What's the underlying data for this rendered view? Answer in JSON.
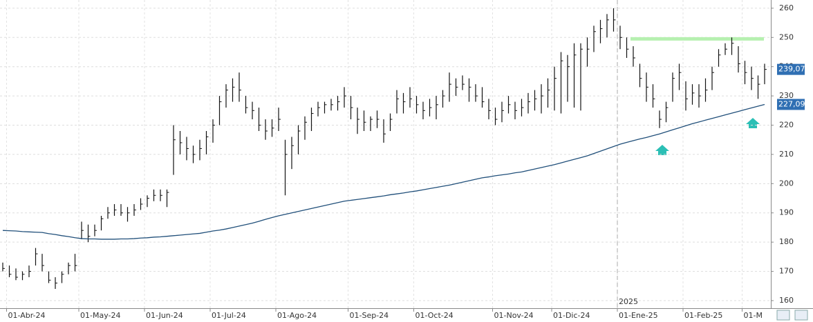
{
  "chart_data": {
    "type": "ohlc",
    "categories": [
      null,
      "01-Abr-24",
      null,
      null,
      null,
      null,
      null,
      null,
      null,
      null,
      null,
      null,
      "01-May-24",
      null,
      null,
      null,
      null,
      null,
      null,
      null,
      null,
      null,
      "01-Jun-24",
      null,
      null,
      null,
      null,
      null,
      null,
      null,
      null,
      null,
      "01-Jul-24",
      null,
      null,
      null,
      null,
      null,
      null,
      null,
      null,
      null,
      "01-Ago-24",
      null,
      null,
      null,
      null,
      null,
      null,
      null,
      null,
      null,
      null,
      "01-Sep-24",
      null,
      null,
      null,
      null,
      null,
      null,
      null,
      null,
      null,
      "01-Oct-24",
      null,
      null,
      null,
      null,
      null,
      null,
      null,
      null,
      null,
      null,
      null,
      "01-Nov-24",
      null,
      null,
      null,
      null,
      null,
      null,
      null,
      null,
      "01-Dic-24",
      null,
      null,
      null,
      null,
      null,
      null,
      null,
      null,
      null,
      "01-Ene-25",
      null,
      null,
      null,
      null,
      null,
      null,
      null,
      null,
      null,
      "01-Feb-25",
      null,
      null,
      null,
      null,
      null,
      null,
      null,
      null,
      "01-M",
      null,
      null,
      null
    ],
    "high": [
      173,
      172,
      171,
      170,
      172,
      178,
      176,
      170,
      168,
      170,
      173,
      176,
      187,
      186,
      186,
      189,
      192,
      193,
      193,
      192,
      193,
      195,
      196,
      198,
      198,
      198,
      220,
      218,
      216,
      213,
      215,
      218,
      222,
      230,
      234,
      236,
      238,
      230,
      228,
      226,
      222,
      222,
      226,
      215,
      216,
      220,
      223,
      226,
      228,
      228,
      229,
      230,
      233,
      230,
      226,
      225,
      223,
      225,
      222,
      224,
      232,
      231,
      233,
      230,
      228,
      229,
      230,
      232,
      238,
      236,
      237,
      236,
      234,
      233,
      229,
      226,
      228,
      230,
      228,
      229,
      231,
      232,
      234,
      236,
      240,
      245,
      244,
      248,
      248,
      250,
      254,
      256,
      258,
      260,
      254,
      250,
      247,
      241,
      238,
      234,
      225,
      228,
      238,
      241,
      235,
      234,
      234,
      236,
      240,
      246,
      248,
      250,
      247,
      242,
      240,
      237,
      241
    ],
    "low": [
      170,
      168,
      167,
      167,
      168,
      172,
      170,
      166,
      164,
      166,
      169,
      170,
      181,
      180,
      182,
      184,
      188,
      189,
      189,
      187,
      189,
      191,
      192,
      194,
      194,
      192,
      203,
      210,
      208,
      207,
      208,
      210,
      214,
      220,
      226,
      228,
      228,
      224,
      222,
      218,
      215,
      216,
      218,
      196,
      205,
      210,
      215,
      218,
      223,
      224,
      225,
      225,
      226,
      222,
      217,
      218,
      218,
      219,
      214,
      218,
      224,
      224,
      226,
      224,
      222,
      223,
      222,
      226,
      228,
      230,
      232,
      228,
      228,
      226,
      222,
      220,
      221,
      224,
      222,
      223,
      224,
      225,
      224,
      226,
      225,
      224,
      228,
      226,
      225,
      240,
      245,
      248,
      250,
      252,
      246,
      243,
      240,
      233,
      228,
      226,
      219,
      221,
      228,
      232,
      225,
      227,
      226,
      228,
      232,
      240,
      244,
      244,
      238,
      234,
      232,
      229,
      234
    ],
    "close": [
      171,
      169,
      168,
      169,
      170,
      176,
      172,
      167,
      166,
      169,
      172,
      172,
      184,
      182,
      184,
      188,
      190,
      191,
      190,
      190,
      191,
      193,
      195,
      196,
      196,
      197,
      215,
      214,
      212,
      210,
      212,
      216,
      220,
      228,
      232,
      233,
      232,
      226,
      225,
      220,
      218,
      219,
      222,
      210,
      213,
      218,
      221,
      224,
      226,
      227,
      227,
      228,
      230,
      226,
      222,
      221,
      222,
      222,
      217,
      222,
      229,
      228,
      229,
      227,
      225,
      226,
      227,
      230,
      234,
      233,
      234,
      233,
      230,
      228,
      225,
      222,
      225,
      227,
      225,
      226,
      228,
      229,
      230,
      232,
      236,
      242,
      240,
      244,
      246,
      246,
      252,
      253,
      256,
      256,
      250,
      246,
      243,
      236,
      233,
      229,
      222,
      226,
      236,
      238,
      229,
      231,
      230,
      232,
      238,
      244,
      246,
      248,
      241,
      238,
      236,
      234,
      239.07
    ],
    "bar_color": "#111111",
    "moving_average": {
      "color": "#1f4e79",
      "values": [
        184,
        183.9,
        183.8,
        183.6,
        183.5,
        183.4,
        183.3,
        182.9,
        182.6,
        182.2,
        181.9,
        181.5,
        181.2,
        181.1,
        181.1,
        181,
        181,
        181,
        181.1,
        181.1,
        181.2,
        181.4,
        181.5,
        181.7,
        181.8,
        182,
        182.2,
        182.4,
        182.6,
        182.8,
        183,
        183.4,
        183.8,
        184.1,
        184.5,
        185,
        185.5,
        186,
        186.5,
        187.1,
        187.8,
        188.4,
        189,
        189.5,
        190,
        190.5,
        191,
        191.5,
        192,
        192.5,
        193,
        193.5,
        194,
        194.3,
        194.6,
        194.9,
        195.2,
        195.5,
        195.8,
        196.2,
        196.5,
        196.8,
        197.2,
        197.5,
        197.9,
        198.3,
        198.7,
        199.1,
        199.5,
        200,
        200.5,
        201,
        201.5,
        202,
        202.3,
        202.7,
        203,
        203.3,
        203.7,
        204,
        204.5,
        205,
        205.5,
        206,
        206.5,
        207.1,
        207.7,
        208.3,
        208.9,
        209.5,
        210.3,
        211.1,
        211.9,
        212.7,
        213.5,
        214.1,
        214.7,
        215.3,
        215.8,
        216.4,
        217,
        217.7,
        218.4,
        219.1,
        219.8,
        220.5,
        221.1,
        221.7,
        222.3,
        222.9,
        223.5,
        224.1,
        224.7,
        225.3,
        225.9,
        226.5,
        227.09
      ]
    },
    "price_labels": [
      {
        "value": 239.07,
        "label": "239,07"
      },
      {
        "value": 227.09,
        "label": "227,09"
      }
    ],
    "resistance": {
      "value": 249.5,
      "color": "#b6f0b0"
    },
    "year_marker": "2025",
    "ylim": [
      157.4,
      262.8
    ],
    "yticks": [
      160,
      170,
      180,
      190,
      200,
      210,
      220,
      230,
      240,
      250,
      260
    ],
    "grid": true
  }
}
